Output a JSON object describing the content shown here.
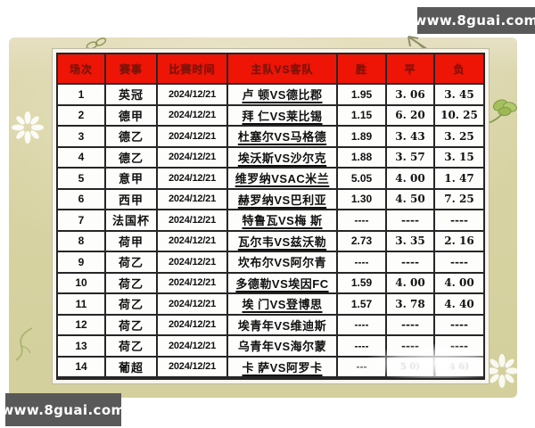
{
  "watermark": {
    "text": "www.8guai.com"
  },
  "table": {
    "headers": [
      "场次",
      "赛事",
      "比赛时间",
      "主队VS客队",
      "胜",
      "平",
      "负"
    ],
    "rows": [
      {
        "no": "1",
        "league": "英冠",
        "time": "2024/12/21",
        "match": "卢 顿VS德比郡",
        "underlined": true,
        "win": "1.95",
        "draw": "3. 06",
        "loss": "3. 45"
      },
      {
        "no": "2",
        "league": "德甲",
        "time": "2024/12/21",
        "match": "拜 仁VS莱比锡",
        "underlined": true,
        "win": "1.15",
        "draw": "6. 20",
        "loss": "10. 25"
      },
      {
        "no": "3",
        "league": "德乙",
        "time": "2024/12/21",
        "match": "杜塞尔VS马格德",
        "underlined": true,
        "win": "1.89",
        "draw": "3. 43",
        "loss": "3. 25"
      },
      {
        "no": "4",
        "league": "德乙",
        "time": "2024/12/21",
        "match": "埃沃斯VS沙尔克",
        "underlined": true,
        "win": "1.88",
        "draw": "3. 57",
        "loss": "3. 15"
      },
      {
        "no": "5",
        "league": "意甲",
        "time": "2024/12/21",
        "match": "维罗纳VSAC米兰",
        "underlined": true,
        "win": "5.05",
        "draw": "4. 00",
        "loss": "1. 47"
      },
      {
        "no": "6",
        "league": "西甲",
        "time": "2024/12/21",
        "match": "赫罗纳VS巴利亚",
        "underlined": true,
        "win": "1.30",
        "draw": "4. 50",
        "loss": "7. 25"
      },
      {
        "no": "7",
        "league": "法国杯",
        "time": "2024/12/21",
        "match": "特鲁瓦VS梅 斯",
        "underlined": true,
        "win": "----",
        "draw": "----",
        "loss": "----"
      },
      {
        "no": "8",
        "league": "荷甲",
        "time": "2024/12/21",
        "match": "瓦尔韦VS兹沃勒",
        "underlined": true,
        "win": "2.73",
        "draw": "3. 35",
        "loss": "2. 16"
      },
      {
        "no": "9",
        "league": "荷乙",
        "time": "2024/12/21",
        "match": "坎布尔VS阿尔青",
        "underlined": false,
        "win": "----",
        "draw": "----",
        "loss": "----"
      },
      {
        "no": "10",
        "league": "荷乙",
        "time": "2024/12/21",
        "match": "多德勒VS埃因FC",
        "underlined": true,
        "win": "1.59",
        "draw": "4. 00",
        "loss": "4. 00"
      },
      {
        "no": "11",
        "league": "荷乙",
        "time": "2024/12/21",
        "match": "埃 门VS登博思",
        "underlined": true,
        "win": "1.57",
        "draw": "3. 78",
        "loss": "4. 40"
      },
      {
        "no": "12",
        "league": "荷乙",
        "time": "2024/12/21",
        "match": "埃青年VS维迪斯",
        "underlined": false,
        "win": "----",
        "draw": "----",
        "loss": "----"
      },
      {
        "no": "13",
        "league": "荷乙",
        "time": "2024/12/21",
        "match": "乌青年VS海尔蒙",
        "underlined": false,
        "win": "----",
        "draw": "----",
        "loss": "----"
      },
      {
        "no": "14",
        "league": "葡超",
        "time": "2024/12/21",
        "match": "卡 萨VS阿罗卡",
        "underlined": true,
        "win": "---",
        "win_faint": true,
        "draw": "5 0)",
        "loss": "4 6)",
        "smudged": true
      }
    ]
  },
  "icons": {
    "top_left": "butterfly-sketch-icon",
    "top_right": "arrow-up-left-icon",
    "right_edge": "clover-leaf-icon",
    "left_edge": "flower-icon",
    "bottom_right": "flower-icon",
    "bottom_left": "vine-sketch-icon"
  },
  "colors": {
    "header_bg": "#ee1507",
    "header_text": "#7a150a",
    "panel": "#d7d3a3",
    "grid_line": "#262626",
    "watermark_bg": "#595959",
    "watermark_text": "#ffffff"
  }
}
